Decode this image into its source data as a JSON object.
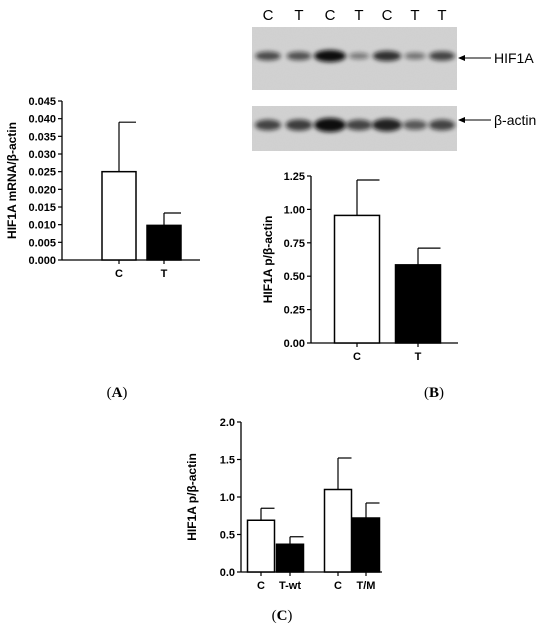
{
  "panels": {
    "a": {
      "open": "(",
      "letter": "A",
      "close": ")"
    },
    "b": {
      "open": "(",
      "letter": "B",
      "close": ")"
    },
    "c": {
      "open": "(",
      "letter": "C",
      "close": ")"
    }
  },
  "blot": {
    "lane_labels": [
      "C",
      "T",
      "C",
      "T",
      "C",
      "T",
      "T"
    ],
    "target_label": "HIF1A",
    "control_label": "β-actin",
    "hif1a_band_intensity": [
      0.55,
      0.5,
      1.0,
      0.2,
      0.75,
      0.25,
      0.6
    ],
    "actin_band_intensity": [
      0.6,
      0.65,
      1.0,
      0.6,
      0.85,
      0.45,
      0.6
    ]
  },
  "chart_data": [
    {
      "type": "bar",
      "panel": "A",
      "categories": [
        "C",
        "T"
      ],
      "values": [
        0.025,
        0.0098
      ],
      "errors": [
        0.014,
        0.0035
      ],
      "bar_fill": [
        "#ffffff",
        "#000000"
      ],
      "ylabel": "HIF1A mRNA/β-actin",
      "ylim": [
        0,
        0.045
      ],
      "yticks": [
        0.0,
        0.005,
        0.01,
        0.015,
        0.02,
        0.025,
        0.03,
        0.035,
        0.04,
        0.045
      ],
      "ytick_labels": [
        "0.000",
        "0.005",
        "0.010",
        "0.015",
        "0.020",
        "0.025",
        "0.030",
        "0.035",
        "0.040",
        "0.045"
      ],
      "grid": false
    },
    {
      "type": "bar",
      "panel": "B",
      "categories": [
        "C",
        "T"
      ],
      "values": [
        0.955,
        0.585
      ],
      "errors": [
        0.265,
        0.125
      ],
      "bar_fill": [
        "#ffffff",
        "#000000"
      ],
      "ylabel": "HIF1A p/β-actin",
      "ylim": [
        0,
        1.25
      ],
      "yticks": [
        0.0,
        0.25,
        0.5,
        0.75,
        1.0,
        1.25
      ],
      "ytick_labels": [
        "0.00",
        "0.25",
        "0.50",
        "0.75",
        "1.00",
        "1.25"
      ],
      "grid": false
    },
    {
      "type": "bar",
      "panel": "C",
      "categories": [
        "C",
        "T-wt",
        "C",
        "T/M"
      ],
      "values": [
        0.69,
        0.37,
        1.1,
        0.72
      ],
      "errors": [
        0.16,
        0.1,
        0.42,
        0.2
      ],
      "bar_fill": [
        "#ffffff",
        "#000000",
        "#ffffff",
        "#000000"
      ],
      "ylabel": "HIF1A p/β-actin",
      "ylim": [
        0,
        2.0
      ],
      "yticks": [
        0.0,
        0.5,
        1.0,
        1.5,
        2.0
      ],
      "ytick_labels": [
        "0.0",
        "0.5",
        "1.0",
        "1.5",
        "2.0"
      ],
      "grid": false
    }
  ]
}
